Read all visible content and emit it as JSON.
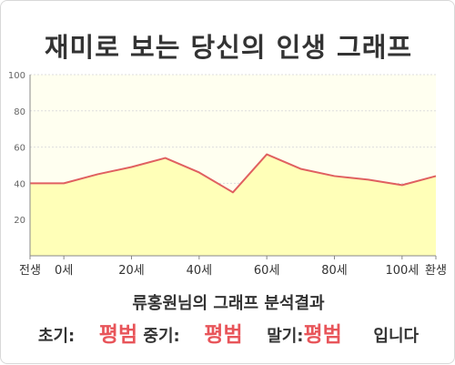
{
  "title": "재미로 보는 당신의 인생 그래프",
  "subtitle": "류홍원님의 그래프 분석결과",
  "result": {
    "early_label": "초기:",
    "early_value": "평범",
    "mid_label": "중기:",
    "mid_value": "평범",
    "late_label": "말기:",
    "late_value": "평범",
    "suffix": "입니다"
  },
  "colors": {
    "line": "#e06060",
    "fill": "#ffffb8",
    "plot_bg": "#fffff0",
    "grade": "#e8555a"
  },
  "chart_data": {
    "type": "area",
    "title": "재미로 보는 당신의 인생 그래프",
    "xlabel": "",
    "ylabel": "",
    "ylim": [
      0,
      100
    ],
    "yticks": [
      20,
      40,
      60,
      80,
      100
    ],
    "xlim": [
      -10,
      110
    ],
    "xticks": [
      {
        "x": -10,
        "label": "전생"
      },
      {
        "x": 0,
        "label": "0세"
      },
      {
        "x": 20,
        "label": "20세"
      },
      {
        "x": 40,
        "label": "40세"
      },
      {
        "x": 60,
        "label": "60세"
      },
      {
        "x": 80,
        "label": "80세"
      },
      {
        "x": 100,
        "label": "100세"
      },
      {
        "x": 110,
        "label": "환생"
      }
    ],
    "grid": true,
    "x": [
      -10,
      0,
      10,
      20,
      30,
      40,
      50,
      60,
      70,
      80,
      90,
      100,
      110
    ],
    "y": [
      40,
      40,
      45,
      49,
      54,
      46,
      35,
      56,
      48,
      44,
      42,
      39,
      44
    ]
  }
}
